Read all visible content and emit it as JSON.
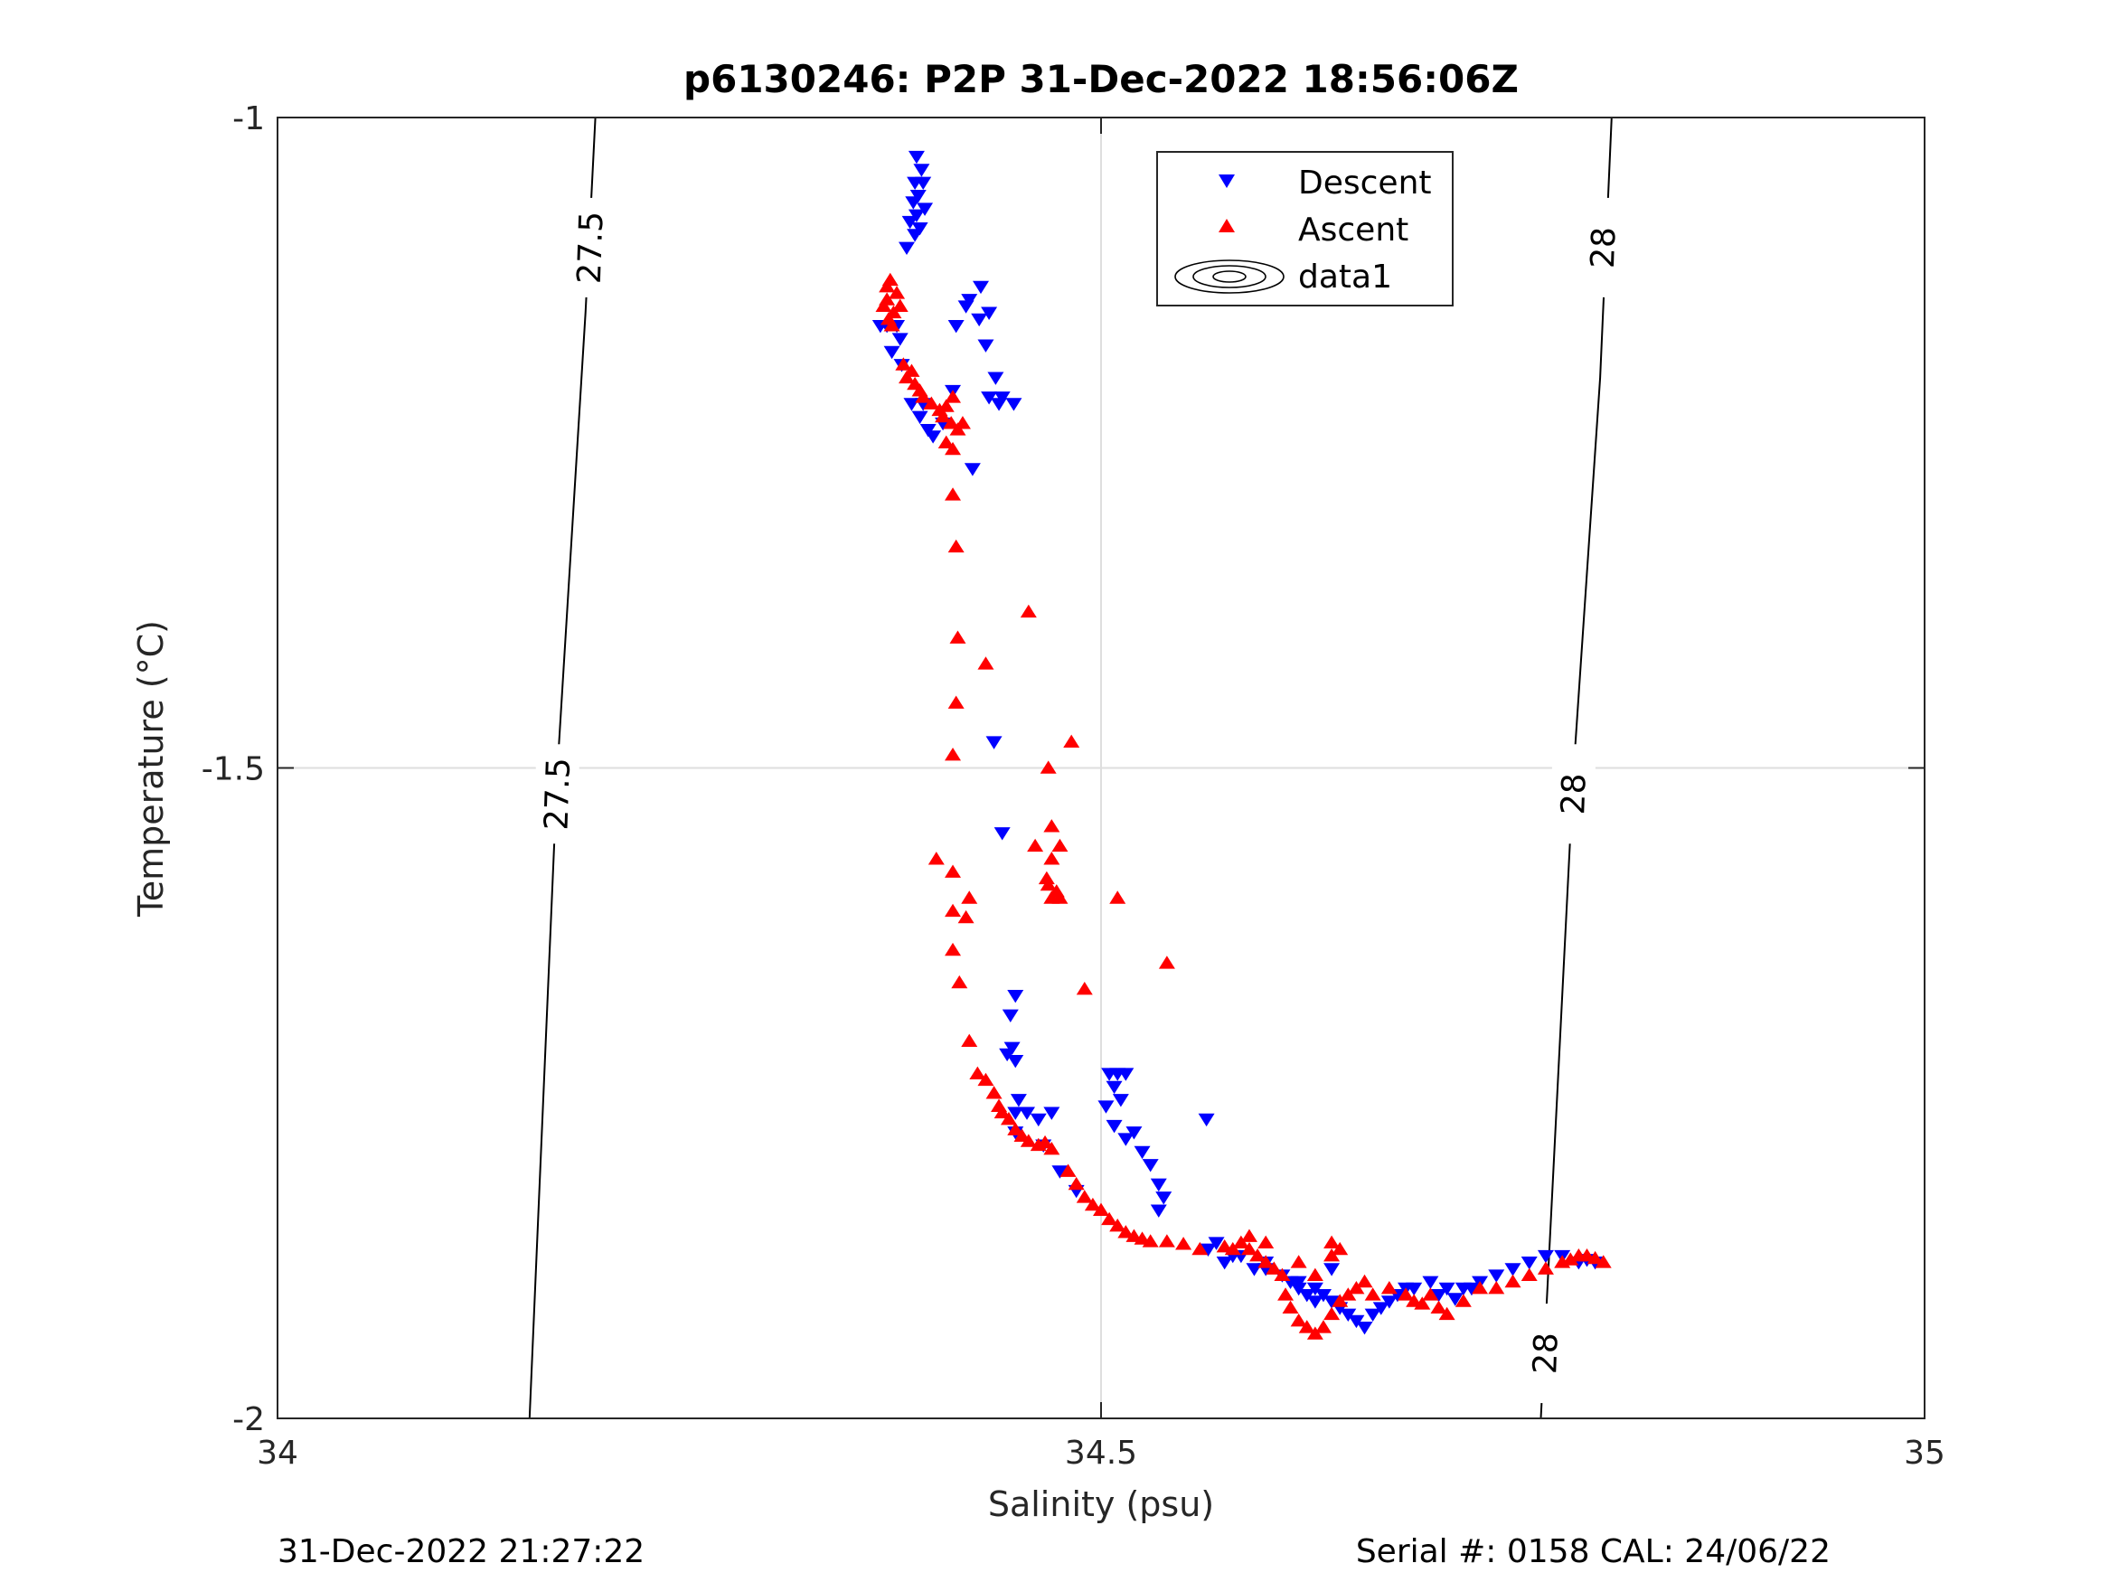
{
  "chart_data": {
    "type": "scatter",
    "title": "p6130246: P2P 31-Dec-2022 18:56:06Z",
    "xlabel": "Salinity (psu)",
    "ylabel": "Temperature (°C)",
    "xlim": [
      34,
      35
    ],
    "ylim": [
      -2,
      -1
    ],
    "xticks": [
      34,
      34.5,
      35
    ],
    "xtick_labels": [
      "34",
      "34.5",
      "35"
    ],
    "yticks": [
      -2,
      -1.5,
      -1
    ],
    "ytick_labels": [
      "-2",
      "-1.5",
      "-1"
    ],
    "grid": true,
    "legend_position": "top-center",
    "contours": [
      {
        "label": "27.5",
        "points": [
          [
            34.193,
            -1.0
          ],
          [
            34.187,
            -1.15
          ],
          [
            34.17,
            -1.5
          ],
          [
            34.153,
            -2.0
          ]
        ],
        "label_at": [
          [
            34.19,
            -1.1
          ],
          [
            34.17,
            -1.52
          ]
        ]
      },
      {
        "label": "28",
        "points": [
          [
            34.81,
            -1.0
          ],
          [
            34.803,
            -1.2
          ],
          [
            34.787,
            -1.5
          ],
          [
            34.767,
            -2.0
          ]
        ],
        "label_at": [
          [
            34.805,
            -1.1
          ],
          [
            34.787,
            -1.52
          ],
          [
            34.77,
            -1.95
          ]
        ]
      }
    ],
    "series": [
      {
        "name": "Descent",
        "marker": "triangle-down",
        "color": "#0000ff",
        "points": [
          [
            34.388,
            -1.03
          ],
          [
            34.391,
            -1.04
          ],
          [
            34.387,
            -1.05
          ],
          [
            34.392,
            -1.05
          ],
          [
            34.389,
            -1.06
          ],
          [
            34.386,
            -1.065
          ],
          [
            34.393,
            -1.07
          ],
          [
            34.388,
            -1.075
          ],
          [
            34.384,
            -1.08
          ],
          [
            34.39,
            -1.085
          ],
          [
            34.387,
            -1.09
          ],
          [
            34.382,
            -1.1
          ],
          [
            34.376,
            -1.16
          ],
          [
            34.37,
            -1.16
          ],
          [
            34.378,
            -1.17
          ],
          [
            34.373,
            -1.18
          ],
          [
            34.379,
            -1.19
          ],
          [
            34.366,
            -1.16
          ],
          [
            34.385,
            -1.22
          ],
          [
            34.39,
            -1.23
          ],
          [
            34.395,
            -1.24
          ],
          [
            34.392,
            -1.22
          ],
          [
            34.398,
            -1.245
          ],
          [
            34.41,
            -1.21
          ],
          [
            34.404,
            -1.235
          ],
          [
            34.427,
            -1.13
          ],
          [
            34.42,
            -1.14
          ],
          [
            34.432,
            -1.15
          ],
          [
            34.426,
            -1.155
          ],
          [
            34.418,
            -1.145
          ],
          [
            34.412,
            -1.16
          ],
          [
            34.43,
            -1.175
          ],
          [
            34.436,
            -1.2
          ],
          [
            34.44,
            -1.215
          ],
          [
            34.447,
            -1.22
          ],
          [
            34.432,
            -1.215
          ],
          [
            34.438,
            -1.22
          ],
          [
            34.422,
            -1.27
          ],
          [
            34.435,
            -1.48
          ],
          [
            34.44,
            -1.55
          ],
          [
            34.448,
            -1.675
          ],
          [
            34.445,
            -1.69
          ],
          [
            34.446,
            -1.715
          ],
          [
            34.443,
            -1.72
          ],
          [
            34.448,
            -1.725
          ],
          [
            34.45,
            -1.755
          ],
          [
            34.448,
            -1.765
          ],
          [
            34.455,
            -1.765
          ],
          [
            34.462,
            -1.77
          ],
          [
            34.47,
            -1.765
          ],
          [
            34.448,
            -1.78
          ],
          [
            34.465,
            -1.79
          ],
          [
            34.475,
            -1.81
          ],
          [
            34.485,
            -1.825
          ],
          [
            34.505,
            -1.735
          ],
          [
            34.51,
            -1.735
          ],
          [
            34.515,
            -1.735
          ],
          [
            34.508,
            -1.745
          ],
          [
            34.512,
            -1.755
          ],
          [
            34.503,
            -1.76
          ],
          [
            34.508,
            -1.775
          ],
          [
            34.515,
            -1.785
          ],
          [
            34.52,
            -1.78
          ],
          [
            34.525,
            -1.795
          ],
          [
            34.53,
            -1.805
          ],
          [
            34.535,
            -1.82
          ],
          [
            34.538,
            -1.83
          ],
          [
            34.535,
            -1.84
          ],
          [
            34.565,
            -1.87
          ],
          [
            34.575,
            -1.88
          ],
          [
            34.585,
            -1.875
          ],
          [
            34.593,
            -1.885
          ],
          [
            34.6,
            -1.88
          ],
          [
            34.57,
            -1.865
          ],
          [
            34.58,
            -1.875
          ],
          [
            34.61,
            -1.89
          ],
          [
            34.615,
            -1.895
          ],
          [
            34.62,
            -1.9
          ],
          [
            34.625,
            -1.905
          ],
          [
            34.63,
            -1.91
          ],
          [
            34.635,
            -1.905
          ],
          [
            34.64,
            -1.91
          ],
          [
            34.645,
            -1.915
          ],
          [
            34.65,
            -1.92
          ],
          [
            34.655,
            -1.925
          ],
          [
            34.66,
            -1.93
          ],
          [
            34.665,
            -1.92
          ],
          [
            34.67,
            -1.915
          ],
          [
            34.675,
            -1.91
          ],
          [
            34.68,
            -1.905
          ],
          [
            34.685,
            -1.9
          ],
          [
            34.69,
            -1.9
          ],
          [
            34.7,
            -1.895
          ],
          [
            34.71,
            -1.9
          ],
          [
            34.72,
            -1.9
          ],
          [
            34.73,
            -1.895
          ],
          [
            34.74,
            -1.89
          ],
          [
            34.75,
            -1.885
          ],
          [
            34.76,
            -1.88
          ],
          [
            34.77,
            -1.875
          ],
          [
            34.78,
            -1.875
          ],
          [
            34.79,
            -1.88
          ],
          [
            34.795,
            -1.878
          ],
          [
            34.8,
            -1.88
          ],
          [
            34.705,
            -1.905
          ],
          [
            34.715,
            -1.908
          ],
          [
            34.725,
            -1.9
          ],
          [
            34.62,
            -1.895
          ],
          [
            34.63,
            -1.9
          ],
          [
            34.64,
            -1.885
          ],
          [
            34.6,
            -1.885
          ],
          [
            34.564,
            -1.77
          ]
        ]
      },
      {
        "name": "Ascent",
        "marker": "triangle-up",
        "color": "#ff0000",
        "points": [
          [
            34.37,
            -1.13
          ],
          [
            34.372,
            -1.125
          ],
          [
            34.376,
            -1.135
          ],
          [
            34.37,
            -1.14
          ],
          [
            34.368,
            -1.145
          ],
          [
            34.378,
            -1.145
          ],
          [
            34.374,
            -1.15
          ],
          [
            34.371,
            -1.155
          ],
          [
            34.373,
            -1.16
          ],
          [
            34.38,
            -1.19
          ],
          [
            34.385,
            -1.195
          ],
          [
            34.382,
            -1.2
          ],
          [
            34.387,
            -1.205
          ],
          [
            34.39,
            -1.21
          ],
          [
            34.392,
            -1.215
          ],
          [
            34.397,
            -1.22
          ],
          [
            34.402,
            -1.225
          ],
          [
            34.406,
            -1.222
          ],
          [
            34.41,
            -1.215
          ],
          [
            34.404,
            -1.23
          ],
          [
            34.409,
            -1.235
          ],
          [
            34.413,
            -1.24
          ],
          [
            34.416,
            -1.235
          ],
          [
            34.406,
            -1.25
          ],
          [
            34.41,
            -1.255
          ],
          [
            34.41,
            -1.29
          ],
          [
            34.412,
            -1.33
          ],
          [
            34.413,
            -1.4
          ],
          [
            34.412,
            -1.45
          ],
          [
            34.41,
            -1.49
          ],
          [
            34.43,
            -1.42
          ],
          [
            34.456,
            -1.38
          ],
          [
            34.482,
            -1.48
          ],
          [
            34.468,
            -1.5
          ],
          [
            34.4,
            -1.57
          ],
          [
            34.41,
            -1.58
          ],
          [
            34.42,
            -1.6
          ],
          [
            34.418,
            -1.615
          ],
          [
            34.41,
            -1.61
          ],
          [
            34.41,
            -1.64
          ],
          [
            34.414,
            -1.665
          ],
          [
            34.46,
            -1.56
          ],
          [
            34.475,
            -1.56
          ],
          [
            34.47,
            -1.545
          ],
          [
            34.47,
            -1.57
          ],
          [
            34.468,
            -1.59
          ],
          [
            34.473,
            -1.595
          ],
          [
            34.47,
            -1.6
          ],
          [
            34.475,
            -1.6
          ],
          [
            34.467,
            -1.585
          ],
          [
            34.51,
            -1.6
          ],
          [
            34.54,
            -1.65
          ],
          [
            34.49,
            -1.67
          ],
          [
            34.42,
            -1.71
          ],
          [
            34.425,
            -1.735
          ],
          [
            34.43,
            -1.74
          ],
          [
            34.435,
            -1.75
          ],
          [
            34.438,
            -1.76
          ],
          [
            34.44,
            -1.765
          ],
          [
            34.444,
            -1.77
          ],
          [
            34.448,
            -1.778
          ],
          [
            34.452,
            -1.783
          ],
          [
            34.456,
            -1.787
          ],
          [
            34.462,
            -1.79
          ],
          [
            34.466,
            -1.788
          ],
          [
            34.47,
            -1.793
          ],
          [
            34.48,
            -1.81
          ],
          [
            34.485,
            -1.82
          ],
          [
            34.49,
            -1.83
          ],
          [
            34.495,
            -1.836
          ],
          [
            34.5,
            -1.84
          ],
          [
            34.505,
            -1.847
          ],
          [
            34.51,
            -1.852
          ],
          [
            34.515,
            -1.857
          ],
          [
            34.52,
            -1.86
          ],
          [
            34.525,
            -1.862
          ],
          [
            34.53,
            -1.864
          ],
          [
            34.54,
            -1.864
          ],
          [
            34.55,
            -1.866
          ],
          [
            34.56,
            -1.87
          ],
          [
            34.58,
            -1.87
          ],
          [
            34.585,
            -1.865
          ],
          [
            34.59,
            -1.87
          ],
          [
            34.595,
            -1.875
          ],
          [
            34.6,
            -1.88
          ],
          [
            34.605,
            -1.885
          ],
          [
            34.61,
            -1.89
          ],
          [
            34.612,
            -1.905
          ],
          [
            34.615,
            -1.915
          ],
          [
            34.62,
            -1.925
          ],
          [
            34.625,
            -1.93
          ],
          [
            34.63,
            -1.935
          ],
          [
            34.635,
            -1.93
          ],
          [
            34.64,
            -1.92
          ],
          [
            34.645,
            -1.91
          ],
          [
            34.65,
            -1.905
          ],
          [
            34.655,
            -1.9
          ],
          [
            34.66,
            -1.895
          ],
          [
            34.64,
            -1.865
          ],
          [
            34.645,
            -1.87
          ],
          [
            34.64,
            -1.875
          ],
          [
            34.665,
            -1.905
          ],
          [
            34.675,
            -1.9
          ],
          [
            34.685,
            -1.905
          ],
          [
            34.69,
            -1.91
          ],
          [
            34.695,
            -1.912
          ],
          [
            34.7,
            -1.905
          ],
          [
            34.705,
            -1.915
          ],
          [
            34.71,
            -1.92
          ],
          [
            34.72,
            -1.91
          ],
          [
            34.73,
            -1.9
          ],
          [
            34.74,
            -1.9
          ],
          [
            34.75,
            -1.895
          ],
          [
            34.76,
            -1.89
          ],
          [
            34.77,
            -1.885
          ],
          [
            34.78,
            -1.88
          ],
          [
            34.785,
            -1.878
          ],
          [
            34.79,
            -1.875
          ],
          [
            34.795,
            -1.875
          ],
          [
            34.8,
            -1.877
          ],
          [
            34.805,
            -1.88
          ],
          [
            34.62,
            -1.88
          ],
          [
            34.63,
            -1.89
          ],
          [
            34.6,
            -1.865
          ],
          [
            34.59,
            -1.86
          ],
          [
            34.575,
            -1.868
          ]
        ]
      },
      {
        "name": "data1",
        "marker": "contour-ellipses",
        "color": "#000000",
        "points": []
      }
    ]
  },
  "footer": {
    "left": "31-Dec-2022 21:27:22",
    "right": "Serial #: 0158  CAL: 24/06/22"
  }
}
